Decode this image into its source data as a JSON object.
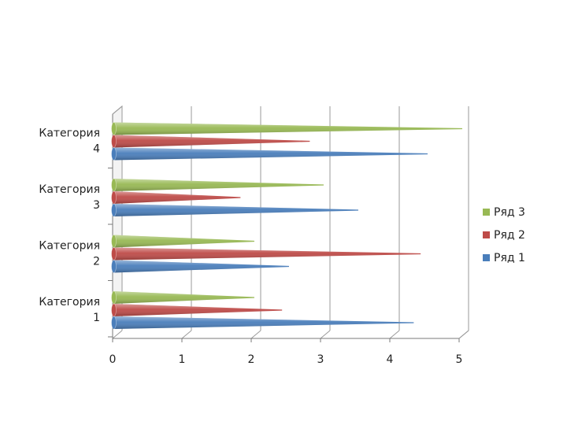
{
  "chart_data": {
    "type": "bar",
    "orientation": "horizontal",
    "categories": [
      "Категория 1",
      "Категория 2",
      "Категория 3",
      "Категория 4"
    ],
    "category_label_lines": [
      [
        "Категория",
        "1"
      ],
      [
        "Категория",
        "2"
      ],
      [
        "Категория",
        "3"
      ],
      [
        "Категория",
        "4"
      ]
    ],
    "series": [
      {
        "name": "Ряд 1",
        "values": [
          4.3,
          2.5,
          3.5,
          4.5
        ],
        "color": "#4a7ebb"
      },
      {
        "name": "Ряд 2",
        "values": [
          2.4,
          4.4,
          1.8,
          2.8
        ],
        "color": "#be4b48"
      },
      {
        "name": "Ряд 3",
        "values": [
          2.0,
          2.0,
          3.0,
          5.0
        ],
        "color": "#98b954"
      }
    ],
    "xlim": [
      0,
      5
    ],
    "ticks": [
      "0",
      "1",
      "2",
      "3",
      "4",
      "5"
    ],
    "grid": true,
    "legend_position": "right",
    "style": "3d-cone"
  }
}
